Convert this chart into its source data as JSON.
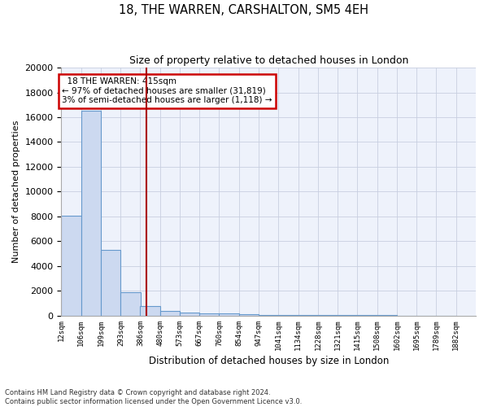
{
  "title1": "18, THE WARREN, CARSHALTON, SM5 4EH",
  "title2": "Size of property relative to detached houses in London",
  "xlabel": "Distribution of detached houses by size in London",
  "ylabel": "Number of detached properties",
  "bin_labels": [
    "12sqm",
    "106sqm",
    "199sqm",
    "293sqm",
    "386sqm",
    "480sqm",
    "573sqm",
    "667sqm",
    "760sqm",
    "854sqm",
    "947sqm",
    "1041sqm",
    "1134sqm",
    "1228sqm",
    "1321sqm",
    "1415sqm",
    "1508sqm",
    "1602sqm",
    "1695sqm",
    "1789sqm",
    "1882sqm"
  ],
  "bar_values": [
    8050,
    16500,
    5300,
    1850,
    750,
    350,
    250,
    200,
    200,
    100,
    50,
    30,
    20,
    15,
    10,
    8,
    5,
    4,
    3,
    2
  ],
  "bar_color": "#ccd9f0",
  "bar_edge_color": "#6699cc",
  "property_sqm": 415,
  "property_label": "18 THE WARREN: 415sqm",
  "pct_smaller": 97,
  "n_smaller": 31819,
  "pct_larger": 3,
  "n_larger": 1118,
  "vline_color": "#aa0000",
  "annotation_box_color": "#cc0000",
  "ylim": [
    0,
    20000
  ],
  "yticks": [
    0,
    2000,
    4000,
    6000,
    8000,
    10000,
    12000,
    14000,
    16000,
    18000,
    20000
  ],
  "footnote1": "Contains HM Land Registry data © Crown copyright and database right 2024.",
  "footnote2": "Contains public sector information licensed under the Open Government Licence v3.0.",
  "bg_color": "#eef2fb",
  "grid_color": "#c8cfe0"
}
